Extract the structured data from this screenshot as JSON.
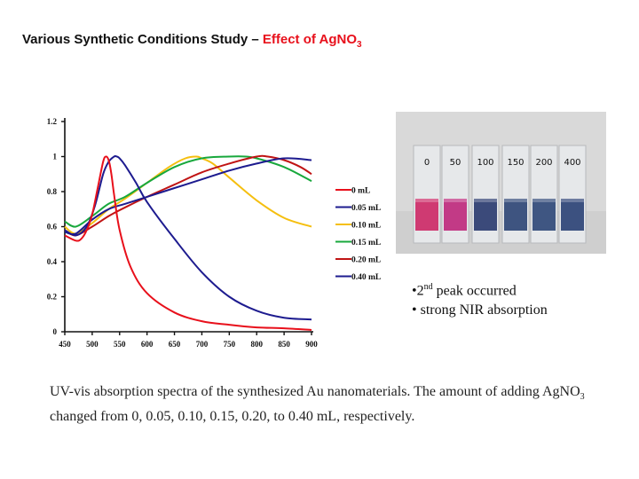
{
  "title": {
    "prefix": "Various Synthetic Conditions Study – ",
    "highlight": "Effect of AgNO",
    "highlight_sub": "3"
  },
  "chart_data": {
    "type": "line",
    "title": "",
    "xlabel": "",
    "ylabel": "",
    "xlim": [
      450,
      900
    ],
    "ylim": [
      0,
      1.2
    ],
    "x_ticks": [
      450,
      500,
      550,
      600,
      650,
      700,
      750,
      800,
      850,
      900
    ],
    "y_ticks": [
      0,
      0.2,
      0.4,
      0.6,
      0.8,
      1,
      1.2
    ],
    "grid": false,
    "legend_position": "right",
    "series": [
      {
        "name": "0 mL",
        "color": "#e8101b",
        "x": [
          450,
          470,
          480,
          490,
          500,
          510,
          520,
          525,
          530,
          535,
          540,
          550,
          570,
          600,
          650,
          700,
          750,
          800,
          850,
          900
        ],
        "y": [
          0.55,
          0.52,
          0.53,
          0.58,
          0.67,
          0.82,
          0.97,
          1.0,
          0.98,
          0.9,
          0.78,
          0.58,
          0.37,
          0.22,
          0.11,
          0.06,
          0.04,
          0.025,
          0.02,
          0.01
        ]
      },
      {
        "name": "0.05 mL",
        "color": "#1d1b8f",
        "x": [
          450,
          470,
          490,
          505,
          520,
          530,
          540,
          545,
          550,
          560,
          580,
          600,
          650,
          700,
          750,
          800,
          850,
          900
        ],
        "y": [
          0.58,
          0.55,
          0.6,
          0.72,
          0.9,
          0.97,
          1.0,
          1.0,
          0.99,
          0.95,
          0.85,
          0.74,
          0.53,
          0.34,
          0.2,
          0.12,
          0.08,
          0.07
        ]
      },
      {
        "name": "0.10 mL",
        "color": "#f5bf10",
        "x": [
          450,
          470,
          500,
          530,
          560,
          600,
          640,
          670,
          690,
          700,
          720,
          750,
          800,
          850,
          900
        ],
        "y": [
          0.6,
          0.56,
          0.62,
          0.7,
          0.76,
          0.85,
          0.94,
          0.99,
          1.0,
          0.99,
          0.96,
          0.88,
          0.75,
          0.65,
          0.6
        ]
      },
      {
        "name": "0.15 mL",
        "color": "#18a83c",
        "x": [
          450,
          470,
          500,
          530,
          560,
          600,
          650,
          700,
          750,
          780,
          800,
          850,
          900
        ],
        "y": [
          0.63,
          0.6,
          0.66,
          0.73,
          0.77,
          0.85,
          0.94,
          0.99,
          1.0,
          1.0,
          0.99,
          0.94,
          0.86
        ]
      },
      {
        "name": "0.20 mL",
        "color": "#c01414",
        "x": [
          450,
          470,
          500,
          530,
          560,
          600,
          650,
          700,
          750,
          800,
          820,
          850,
          880,
          900
        ],
        "y": [
          0.58,
          0.55,
          0.6,
          0.66,
          0.71,
          0.77,
          0.84,
          0.91,
          0.96,
          1.0,
          1.0,
          0.98,
          0.94,
          0.9
        ]
      },
      {
        "name": "0.40 mL",
        "color": "#1d1b8f",
        "x": [
          450,
          470,
          500,
          530,
          560,
          600,
          650,
          700,
          750,
          800,
          850,
          900
        ],
        "y": [
          0.57,
          0.56,
          0.64,
          0.7,
          0.73,
          0.77,
          0.82,
          0.87,
          0.92,
          0.96,
          0.99,
          0.98
        ]
      }
    ]
  },
  "photo_labels": [
    "0",
    "50",
    "100",
    "150",
    "200",
    "400"
  ],
  "cuvette_colors": [
    "#cf3a72",
    "#c23a86",
    "#3b4a7a",
    "#3e5480",
    "#3f5682",
    "#3c5180"
  ],
  "bullets": {
    "line1_main": "2",
    "line1_sup": "nd",
    "line1_rest": " peak occurred",
    "line2": "strong NIR absorption"
  },
  "caption": {
    "part1": "UV-vis absorption spectra of the synthesized Au nanomaterials. The amount of adding AgNO",
    "part1_sub": "3",
    "part2": " changed from 0, 0.05, 0.10, 0.15, 0.20, to 0.40 mL, respectively."
  }
}
